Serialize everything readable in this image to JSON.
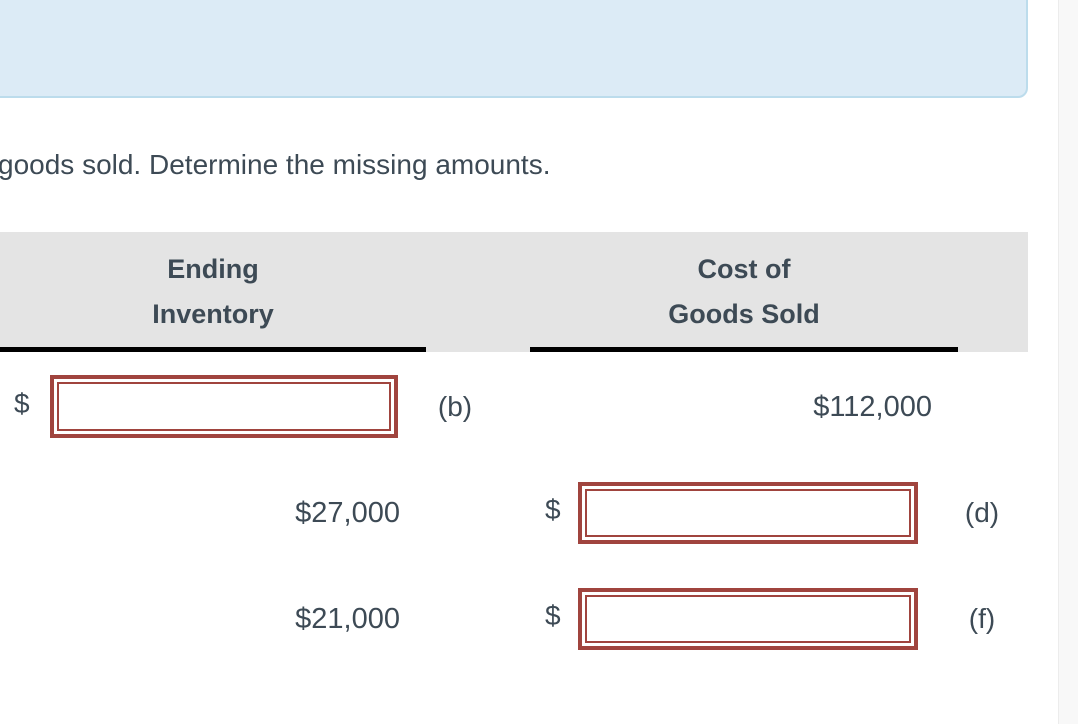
{
  "colors": {
    "info_panel_bg": "#dcebf6",
    "info_panel_border": "#bcdcec",
    "header_bg": "#e4e4e4",
    "input_border": "#a0443e",
    "text": "#3d4a55",
    "rule": "#000000"
  },
  "question": {
    "text": "goods sold. Determine the missing amounts."
  },
  "table": {
    "col1_header": "Ending\nInventory",
    "col2_header": "Cost of\nGoods Sold",
    "rows": [
      {
        "ei_prefix": "$",
        "ei_input_value": "",
        "mid_label": "(b)",
        "cogs_text": "$112,000"
      },
      {
        "ei_text": "$27,000",
        "cogs_prefix": "$",
        "cogs_input_value": "",
        "right_label": "(d)"
      },
      {
        "ei_text": "$21,000",
        "cogs_prefix": "$",
        "cogs_input_value": "",
        "right_label": "(f)"
      }
    ]
  }
}
